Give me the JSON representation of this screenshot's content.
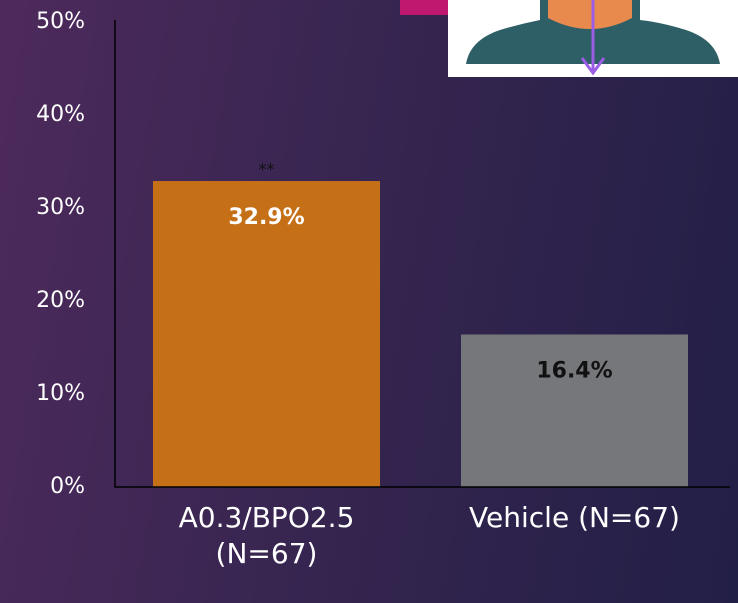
{
  "chart_data": {
    "type": "bar",
    "categories": [
      "A0.3/BPO2.5 (N=67)",
      "Vehicle (N=67)"
    ],
    "values": [
      32.9,
      16.4
    ],
    "value_labels": [
      "32.9%",
      "16.4%"
    ],
    "colors": [
      "#c56f16",
      "#76777a"
    ],
    "value_label_colors": [
      "#ffffff",
      "#111111"
    ],
    "annotation": "**",
    "ylim": [
      0,
      50
    ],
    "yticks": [
      {
        "value": 0,
        "label": "0%"
      },
      {
        "value": 10,
        "label": "10%"
      },
      {
        "value": 20,
        "label": "20%"
      },
      {
        "value": 30,
        "label": "30%"
      },
      {
        "value": 40,
        "label": "40%"
      },
      {
        "value": 50,
        "label": "50%"
      }
    ]
  }
}
